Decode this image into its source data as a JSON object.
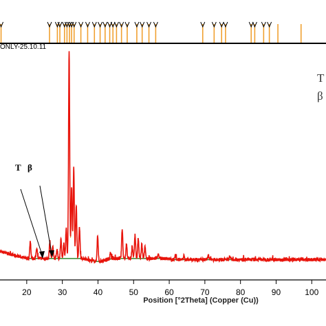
{
  "sample_id": "ONLY-25.10.11",
  "legend": [
    "T",
    "β"
  ],
  "annotation_labels": [
    "T",
    "β"
  ],
  "colors": {
    "pattern": "#e8140c",
    "reference_sticks": "#f0a030",
    "background_fit": "#2e8b2e",
    "axis": "#000000"
  },
  "chart_data": {
    "type": "line",
    "xlabel": "Position [°2Theta] (Copper (Cu))",
    "ylabel": "",
    "xlim": [
      12.5,
      104
    ],
    "xticks": [
      20,
      30,
      40,
      50,
      60,
      70,
      80,
      90,
      100
    ],
    "xtick_labels": [
      "20",
      "30",
      "40",
      "50",
      "60",
      "70",
      "80",
      "90",
      "100"
    ],
    "grid": false,
    "reference_positions": [
      12.8,
      26.4,
      28.6,
      29.3,
      30.6,
      31.3,
      32.0,
      32.6,
      33.3,
      35.2,
      37.1,
      39.0,
      40.6,
      42.0,
      43.3,
      44.2,
      45.2,
      46.6,
      48.2,
      50.9,
      52.4,
      54.3,
      56.2,
      69.4,
      72.6,
      74.7,
      75.8,
      83.0,
      84.0,
      86.5,
      88.1,
      90.5,
      97.0
    ],
    "peaks": [
      {
        "x": 21.0,
        "y": 48
      },
      {
        "x": 22.8,
        "y": 30
      },
      {
        "x": 26.5,
        "y": 47
      },
      {
        "x": 27.3,
        "y": 35
      },
      {
        "x": 28.5,
        "y": 26
      },
      {
        "x": 29.6,
        "y": 54
      },
      {
        "x": 30.4,
        "y": 40
      },
      {
        "x": 31.1,
        "y": 82
      },
      {
        "x": 31.9,
        "y": 575
      },
      {
        "x": 32.6,
        "y": 200
      },
      {
        "x": 33.2,
        "y": 252
      },
      {
        "x": 33.9,
        "y": 150
      },
      {
        "x": 34.8,
        "y": 88
      },
      {
        "x": 39.9,
        "y": 70
      },
      {
        "x": 43.5,
        "y": 18
      },
      {
        "x": 46.8,
        "y": 82
      },
      {
        "x": 48.0,
        "y": 42
      },
      {
        "x": 49.6,
        "y": 32
      },
      {
        "x": 50.4,
        "y": 65
      },
      {
        "x": 51.3,
        "y": 55
      },
      {
        "x": 52.3,
        "y": 40
      },
      {
        "x": 53.2,
        "y": 32
      },
      {
        "x": 56.9,
        "y": 14
      },
      {
        "x": 61.7,
        "y": 12
      },
      {
        "x": 64.1,
        "y": 10
      },
      {
        "x": 71.0,
        "y": 12
      },
      {
        "x": 77.0,
        "y": 10
      }
    ]
  }
}
